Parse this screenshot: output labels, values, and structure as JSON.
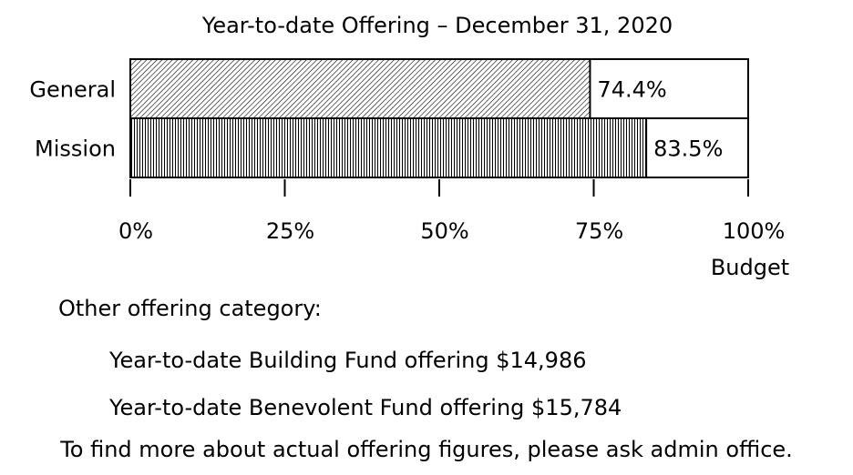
{
  "chart_data": {
    "type": "bar",
    "orientation": "horizontal",
    "title": "Year-to-date Offering – December 31, 2020",
    "categories": [
      "General",
      "Mission"
    ],
    "values": [
      74.4,
      83.5
    ],
    "value_labels": [
      "74.4%",
      "83.5%"
    ],
    "xlim": [
      0,
      100
    ],
    "xticks": [
      0,
      25,
      50,
      75,
      100
    ],
    "xtick_labels": [
      "0%",
      "25%",
      "50%",
      "75%",
      "100%"
    ],
    "xlabel": "Budget",
    "grid": false,
    "legend": "none"
  },
  "notes": {
    "heading": "Other offering category:",
    "items": [
      "Year-to-date Building Fund offering $14,986",
      "Year-to-date Benevolent Fund offering $15,784"
    ],
    "footer": "To find more about actual offering figures, please ask admin office."
  }
}
